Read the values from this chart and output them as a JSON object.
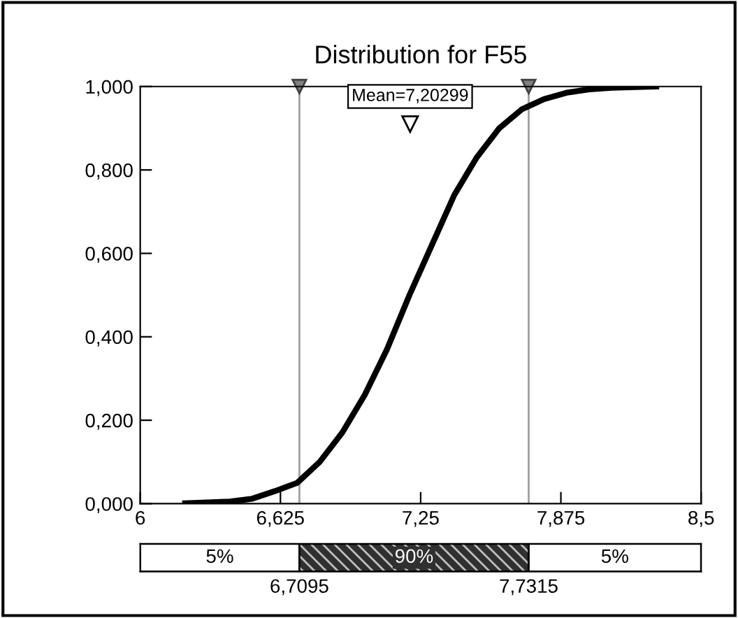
{
  "chart_data": [
    {
      "type": "line",
      "title": "Distribution for F55",
      "x": [
        6.2,
        6.4,
        6.5,
        6.6,
        6.7,
        6.8,
        6.9,
        7.0,
        7.1,
        7.2,
        7.3,
        7.4,
        7.5,
        7.6,
        7.7,
        7.8,
        7.9,
        8.0,
        8.1,
        8.3
      ],
      "series": [
        {
          "color": "#000000",
          "values": [
            0.001,
            0.005,
            0.012,
            0.03,
            0.05,
            0.1,
            0.17,
            0.26,
            0.37,
            0.5,
            0.62,
            0.74,
            0.83,
            0.9,
            0.945,
            0.97,
            0.985,
            0.993,
            0.997,
            1.0
          ]
        }
      ],
      "xlim": [
        6,
        8.5
      ],
      "ylim": [
        0,
        1
      ],
      "xticks": [
        6,
        {
          "value": 6.625,
          "label": "6,625"
        },
        {
          "value": 7.25,
          "label": "7,25"
        },
        {
          "value": 7.875,
          "label": "7,875"
        },
        {
          "value": 8.5,
          "label": "8,5"
        }
      ],
      "yticks": [
        {
          "value": 0,
          "label": "0,000"
        },
        {
          "value": 0.2,
          "label": "0,200"
        },
        {
          "value": 0.4,
          "label": "0,400"
        },
        {
          "value": 0.6,
          "label": "0,600"
        },
        {
          "value": 0.8,
          "label": "0,800"
        },
        {
          "value": 1.0,
          "label": "1,000"
        }
      ],
      "ref_lines": [
        {
          "axis": "x",
          "value": 6.7095,
          "color": "#a0a0a0"
        },
        {
          "axis": "x",
          "value": 7.7315,
          "color": "#a0a0a0"
        }
      ],
      "annotations": [
        {
          "text": "Mean=7,20299",
          "x": 7.20299,
          "y": 0.91
        }
      ],
      "grid": false,
      "legend": false,
      "marker": "none",
      "line_style": "solid"
    },
    {
      "type": "other",
      "annotations": [
        "5%",
        "90%",
        "5%",
        "6,7095",
        "7,7315"
      ]
    }
  ]
}
